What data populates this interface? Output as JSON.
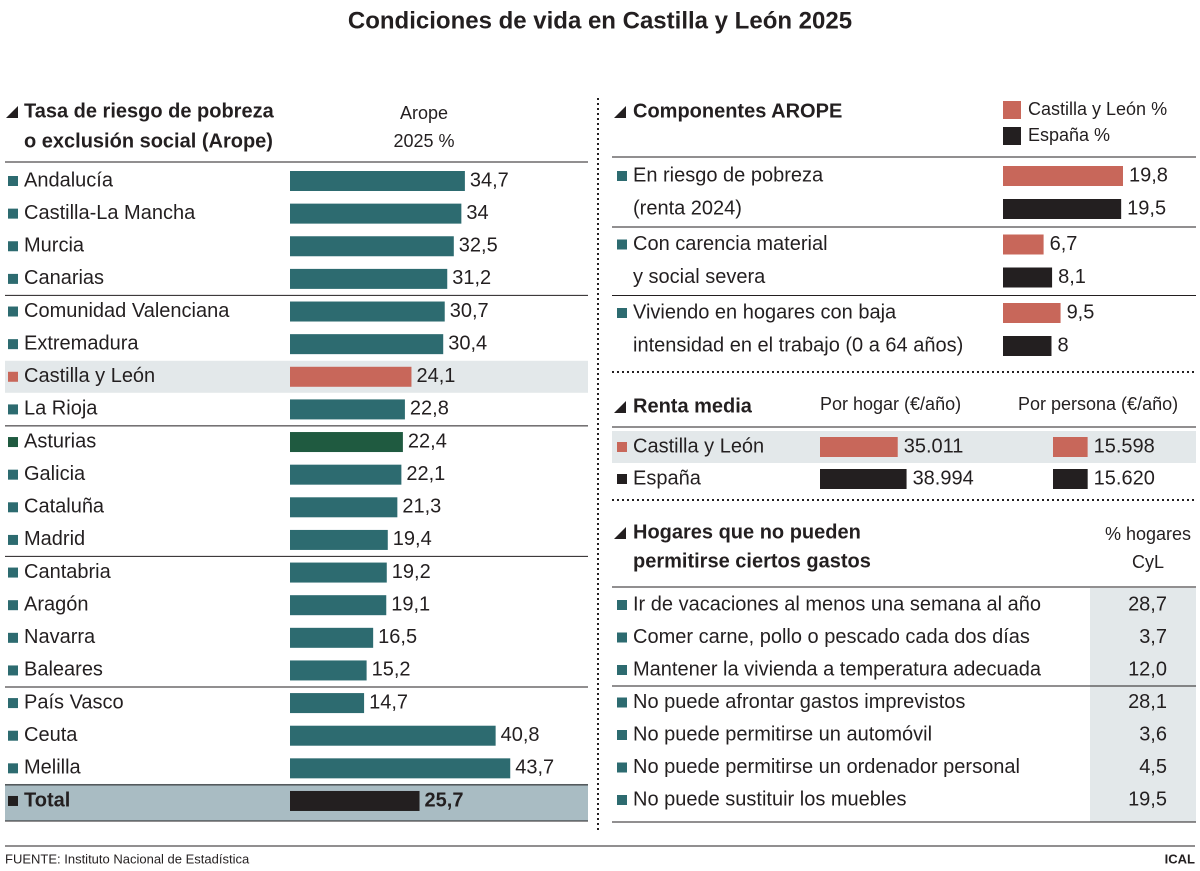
{
  "title": "Condiciones de vida en Castilla y León 2025",
  "source": "FUENTE: Instituto Nacional de Estadística",
  "credit": "ICAL",
  "chart_data": [
    {
      "type": "bar",
      "title": [
        "Tasa de riesgo de pobreza",
        "o exclusión social (Arope)"
      ],
      "value_header": [
        "Arope",
        "2025 %"
      ],
      "categories": [
        "Andalucía",
        "Castilla-La Mancha",
        "Murcia",
        "Canarias",
        "Comunidad Valenciana",
        "Extremadura",
        "Castilla y León",
        "La Rioja",
        "Asturias",
        "Galicia",
        "Cataluña",
        "Madrid",
        "Cantabria",
        "Aragón",
        "Navarra",
        "Baleares",
        "País Vasco",
        "Ceuta",
        "Melilla",
        "Total"
      ],
      "values": [
        34.7,
        34,
        32.5,
        31.2,
        30.7,
        30.4,
        24.1,
        22.8,
        22.4,
        22.1,
        21.3,
        19.4,
        19.2,
        19.1,
        16.5,
        15.2,
        14.7,
        40.8,
        43.7,
        25.7
      ],
      "value_labels": [
        "34,7",
        "34",
        "32,5",
        "31,2",
        "30,7",
        "30,4",
        "24,1",
        "22,8",
        "22,4",
        "22,1",
        "21,3",
        "19,4",
        "19,2",
        "19,1",
        "16,5",
        "15,2",
        "14,7",
        "40,8",
        "43,7",
        "25,7"
      ],
      "colors": [
        "#2d6b70",
        "#2d6b70",
        "#2d6b70",
        "#2d6b70",
        "#2d6b70",
        "#2d6b70",
        "#c8675a",
        "#2d6b70",
        "#1f5a40",
        "#2d6b70",
        "#2d6b70",
        "#2d6b70",
        "#2d6b70",
        "#2d6b70",
        "#2d6b70",
        "#2d6b70",
        "#2d6b70",
        "#2d6b70",
        "#2d6b70",
        "#231f20"
      ]
    },
    {
      "type": "bar",
      "title": "Componentes AROPE",
      "categories": [
        [
          "En riesgo de pobreza",
          "(renta 2024)"
        ],
        [
          "Con carencia material",
          "y social severa"
        ],
        [
          "Viviendo en hogares con baja",
          "intensidad en el trabajo (0 a 64 años)"
        ]
      ],
      "series": [
        {
          "name": "Castilla y León %",
          "color": "#c8675a",
          "values": [
            19.8,
            6.7,
            9.5
          ],
          "value_labels": [
            "19,8",
            "6,7",
            "9,5"
          ]
        },
        {
          "name": "España %",
          "color": "#231f20",
          "values": [
            19.5,
            8.1,
            8
          ],
          "value_labels": [
            "19,5",
            "8,1",
            "8"
          ]
        }
      ]
    },
    {
      "type": "bar",
      "title": "Renta media",
      "categories": [
        "Por hogar (€/año)",
        "Por persona (€/año)"
      ],
      "series": [
        {
          "name": "Castilla y León",
          "color": "#c8675a",
          "values": [
            35011,
            15598
          ],
          "value_labels": [
            "35.011",
            "15.598"
          ]
        },
        {
          "name": "España",
          "color": "#231f20",
          "values": [
            38994,
            15620
          ],
          "value_labels": [
            "38.994",
            "15.620"
          ]
        }
      ]
    }
  ],
  "table": {
    "title": [
      "Hogares que no pueden",
      "permitirse ciertos gastos"
    ],
    "header": [
      "% hogares",
      "CyL"
    ],
    "rows": [
      [
        "Ir de vacaciones al menos una semana al año",
        "28,7"
      ],
      [
        "Comer carne, pollo o pescado cada dos días",
        "3,7"
      ],
      [
        "Mantener la vivienda a temperatura adecuada",
        "12,0"
      ],
      [
        "No puede afrontar gastos imprevistos",
        "28,1"
      ],
      [
        "No puede permitirse un automóvil",
        "3,6"
      ],
      [
        "No puede permitirse un ordenador personal",
        "4,5"
      ],
      [
        "No puede sustituir los muebles",
        "19,5"
      ]
    ]
  }
}
